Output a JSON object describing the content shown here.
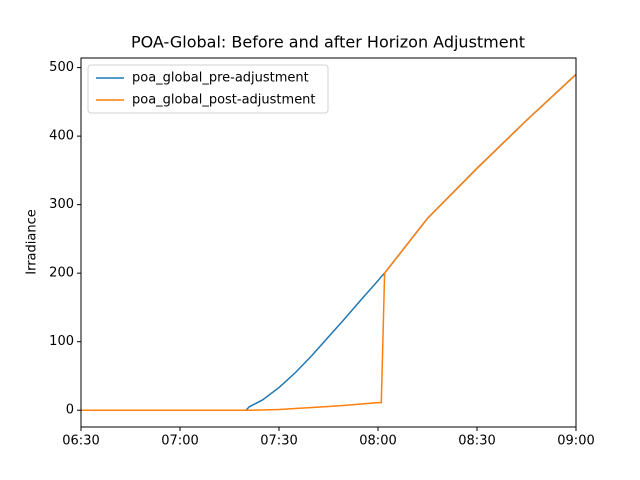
{
  "chart_data": {
    "type": "line",
    "title": "POA-Global: Before and after Horizon Adjustment",
    "ylabel": "Irradiance",
    "x": [
      "06:30",
      "07:20",
      "07:21",
      "07:25",
      "07:30",
      "07:35",
      "07:40",
      "07:45",
      "07:50",
      "07:55",
      "08:00",
      "08:01",
      "08:02",
      "08:15",
      "08:30",
      "08:45",
      "09:00"
    ],
    "series": [
      {
        "name": "poa_global_pre-adjustment",
        "color": "#1f77b4",
        "values": [
          0,
          0,
          5,
          15,
          33,
          55,
          80,
          107,
          134,
          162,
          189,
          195,
          200,
          280,
          353,
          423,
          490
        ]
      },
      {
        "name": "poa_global_post-adjustment",
        "color": "#ff7f0e",
        "values": [
          0,
          0,
          0,
          0.3,
          1,
          2.5,
          4,
          5.5,
          7,
          9,
          11,
          11,
          200,
          280,
          353,
          423,
          490
        ]
      }
    ],
    "xlim": [
      "06:30",
      "09:00"
    ],
    "xticks": [
      "06:30",
      "07:00",
      "07:30",
      "08:00",
      "08:30",
      "09:00"
    ],
    "ylim": [
      -24.5,
      514
    ],
    "yticks": [
      0,
      100,
      200,
      300,
      400,
      500
    ],
    "legend": "upper-left",
    "grid": false
  }
}
